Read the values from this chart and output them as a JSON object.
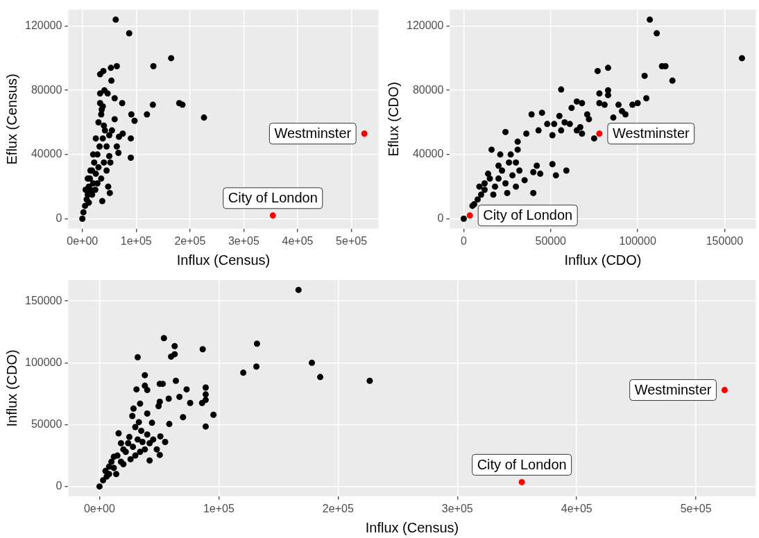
{
  "chart_data": [
    {
      "type": "scatter",
      "xlabel": "Influx (Census)",
      "ylabel": "Eflux (Census)",
      "xlim": [
        -26200,
        550200
      ],
      "ylim": [
        -6200,
        130200
      ],
      "xticks": [
        {
          "value": 0,
          "label": "0e+00"
        },
        {
          "value": 100000,
          "label": "1e+05"
        },
        {
          "value": 200000,
          "label": "2e+05"
        },
        {
          "value": 300000,
          "label": "3e+05"
        },
        {
          "value": 400000,
          "label": "4e+05"
        },
        {
          "value": 500000,
          "label": "5e+05"
        }
      ],
      "yticks": [
        0,
        40000,
        80000,
        120000
      ],
      "grid": true,
      "marker": "circle",
      "series": [
        {
          "color": "#000000",
          "x": [
            62000,
            87000,
            165000,
            132000,
            64000,
            53000,
            39000,
            33000,
            54000,
            180000,
            186000,
            131000,
            120000,
            91000,
            97000,
            226000,
            74000,
            60000,
            33000,
            41000,
            47000,
            90000,
            90000,
            67000,
            64000,
            68000,
            75000,
            50000,
            37000,
            51000,
            0,
            2000,
            5000,
            8000,
            10000,
            12000,
            14000,
            15000,
            18000,
            20000,
            22000,
            25000,
            28000,
            30000,
            32000,
            35000,
            38000,
            40000,
            42000,
            45000,
            48000,
            30000,
            35000,
            38000,
            40000,
            25000,
            20000,
            15000,
            10000,
            6000,
            12000,
            18000,
            24000,
            28000,
            45000,
            50000,
            55000,
            52000,
            60000,
            33000,
            36000
          ],
          "values": [
            124000,
            115500,
            100000,
            95000,
            95000,
            94000,
            92000,
            90000,
            86000,
            72000,
            71000,
            71000,
            65000,
            65000,
            61000,
            63000,
            72000,
            75000,
            78000,
            80000,
            78000,
            50000,
            38000,
            41000,
            45000,
            51000,
            53000,
            39000,
            11000,
            16000,
            0,
            4000,
            8000,
            12000,
            15000,
            20000,
            25000,
            18000,
            30000,
            22000,
            35000,
            28000,
            40000,
            32000,
            45000,
            25000,
            50000,
            35000,
            55000,
            30000,
            20000,
            60000,
            65000,
            70000,
            58000,
            50000,
            40000,
            30000,
            25000,
            18000,
            10000,
            15000,
            18000,
            22000,
            45000,
            52000,
            55000,
            35000,
            62000,
            72000,
            68000
          ]
        },
        {
          "color": "#ff0000",
          "x": [
            524000,
            354000
          ],
          "values": [
            53000,
            2000
          ]
        }
      ],
      "annotations": [
        {
          "text": "Westminster",
          "x": 524000,
          "y": 53000
        },
        {
          "text": "City of London",
          "x": 354000,
          "y": 2000
        }
      ]
    },
    {
      "type": "scatter",
      "xlabel": "Influx (CDO)",
      "ylabel": "Eflux (CDO)",
      "xlim": [
        -8000,
        168000
      ],
      "ylim": [
        -6200,
        130200
      ],
      "xticks": [
        0,
        50000,
        100000,
        150000
      ],
      "yticks": [
        0,
        40000,
        80000,
        120000
      ],
      "grid": true,
      "marker": "circle",
      "series": [
        {
          "color": "#000000",
          "x": [
            160000,
            107000,
            111000,
            114000,
            116000,
            104000,
            120000,
            105000,
            100000,
            97000,
            89000,
            91000,
            93000,
            86000,
            83000,
            77000,
            83000,
            83000,
            78000,
            78000,
            81000,
            56000,
            65000,
            68000,
            62000,
            71000,
            72000,
            45000,
            39000,
            48000,
            55000,
            52000,
            58000,
            61000,
            56000,
            65000,
            67000,
            68000,
            75000,
            51000,
            43000,
            36000,
            24000,
            31000,
            31000,
            16000,
            21000,
            27000,
            59000,
            53000,
            44000,
            40000,
            42000,
            51000,
            32000,
            35000,
            30000,
            40000,
            25000,
            20000,
            18000,
            15000,
            12000,
            10000,
            8000,
            6000,
            5000,
            0,
            22000,
            26000,
            28000,
            20000,
            14000,
            12000,
            17000,
            9000,
            30000,
            24000
          ],
          "values": [
            100000,
            124000,
            115500,
            95000,
            95000,
            89000,
            86000,
            75000,
            72000,
            71000,
            71000,
            67000,
            65000,
            63000,
            94000,
            92000,
            80000,
            77000,
            78000,
            72000,
            71000,
            80500,
            73000,
            72000,
            69000,
            65000,
            62000,
            66000,
            65000,
            59000,
            64000,
            59000,
            60000,
            59000,
            55000,
            55000,
            57000,
            53000,
            50000,
            52000,
            55000,
            53000,
            54000,
            48000,
            43000,
            43000,
            40000,
            40000,
            30000,
            27000,
            28000,
            29000,
            33000,
            34000,
            30000,
            24000,
            20000,
            16000,
            16000,
            25000,
            20000,
            25000,
            18000,
            15000,
            12000,
            9000,
            8000,
            0,
            30000,
            35000,
            27000,
            33000,
            28000,
            22000,
            15000,
            20000,
            35000,
            22000
          ]
        },
        {
          "color": "#ff0000",
          "x": [
            78000,
            3500
          ],
          "values": [
            53000,
            2000
          ]
        }
      ],
      "annotations": [
        {
          "text": "Westminster",
          "x": 78000,
          "y": 53000
        },
        {
          "text": "City of London",
          "x": 3500,
          "y": 2000
        }
      ]
    },
    {
      "type": "scatter",
      "xlabel": "Influx (Census)",
      "ylabel": "Influx (CDO)",
      "xlim": [
        -26200,
        550200
      ],
      "ylim": [
        -7950,
        166950
      ],
      "xticks": [
        {
          "value": 0,
          "label": "0e+00"
        },
        {
          "value": 100000,
          "label": "1e+05"
        },
        {
          "value": 200000,
          "label": "2e+05"
        },
        {
          "value": 300000,
          "label": "3e+05"
        },
        {
          "value": 400000,
          "label": "4e+05"
        },
        {
          "value": 500000,
          "label": "5e+05"
        }
      ],
      "yticks": [
        0,
        50000,
        100000,
        150000
      ],
      "grid": true,
      "marker": "circle",
      "series": [
        {
          "color": "#000000",
          "x": [
            166800,
            54000,
            63000,
            63000,
            60000,
            32000,
            86500,
            132000,
            131500,
            120500,
            178000,
            185000,
            226500,
            89000,
            89000,
            89000,
            86000,
            89000,
            95500,
            73000,
            76000,
            67000,
            70000,
            58000,
            64000,
            58500,
            50500,
            53000,
            38000,
            38000,
            31000,
            40000,
            49500,
            50500,
            55000,
            50500,
            42000,
            51000,
            34000,
            28500,
            27500,
            40000,
            44000,
            0,
            5000,
            3000,
            8000,
            10000,
            12000,
            15000,
            18000,
            20000,
            22000,
            24000,
            25000,
            28000,
            30000,
            32000,
            35000,
            38000,
            40000,
            42000,
            45000,
            16000,
            14000,
            20000,
            26000,
            30000,
            33000,
            12000,
            8000,
            6000,
            18000,
            36000,
            48000,
            34000
          ],
          "values": [
            159000,
            120000,
            113500,
            107000,
            105000,
            104500,
            111000,
            115500,
            97000,
            92000,
            100000,
            88500,
            85500,
            80000,
            74500,
            70000,
            67500,
            48500,
            58000,
            78500,
            67500,
            72500,
            56000,
            71000,
            85500,
            50500,
            83000,
            83000,
            90000,
            81500,
            78500,
            78000,
            65000,
            68500,
            36000,
            25500,
            21000,
            40500,
            67000,
            63000,
            57000,
            59000,
            51500,
            0,
            12500,
            5000,
            10000,
            20000,
            15000,
            25000,
            20000,
            30000,
            28000,
            35000,
            40000,
            32000,
            25000,
            38000,
            45000,
            30000,
            42000,
            35000,
            38000,
            43000,
            10000,
            18000,
            22000,
            48000,
            52000,
            24000,
            16000,
            8000,
            35000,
            36000,
            30000,
            28000
          ]
        },
        {
          "color": "#ff0000",
          "x": [
            524000,
            354000
          ],
          "values": [
            78000,
            3500
          ]
        }
      ],
      "annotations": [
        {
          "text": "Westminster",
          "x": 524000,
          "y": 78000
        },
        {
          "text": "City of London",
          "x": 354000,
          "y": 3500
        }
      ]
    }
  ]
}
